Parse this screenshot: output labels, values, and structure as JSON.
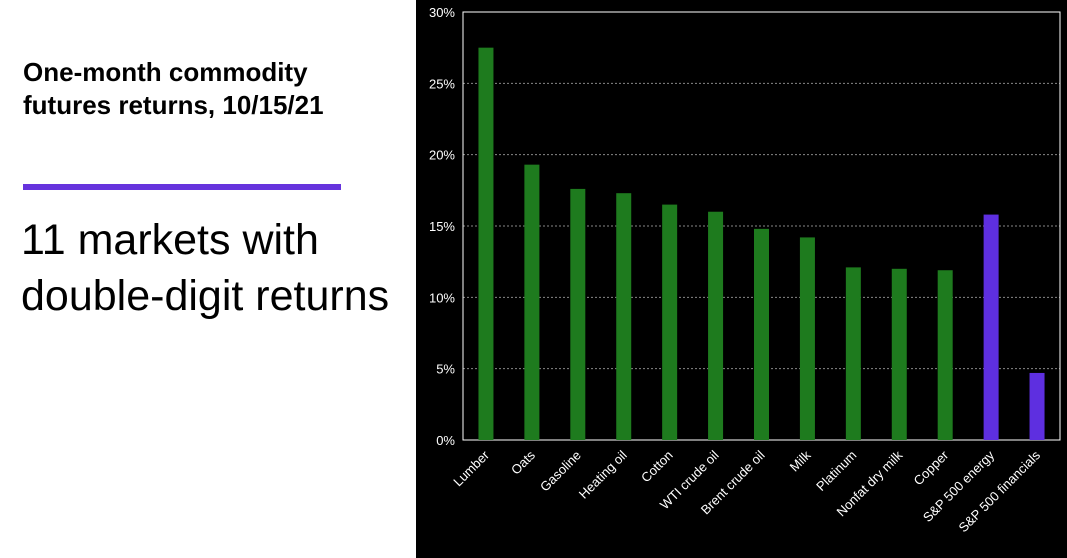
{
  "headline": "One-month commodity futures returns, 10/15/21",
  "subhead": "11 markets with double-digit returns",
  "colors": {
    "accent": "#6633dd",
    "commodity_bar": "#1e7b1e",
    "equity_bar": "#5e2fe0",
    "chart_background": "#000000",
    "axis": "#ffffff",
    "grid": "#888888"
  },
  "chart_data": {
    "type": "bar",
    "title": "",
    "xlabel": "",
    "ylabel": "",
    "ylim": [
      0,
      30
    ],
    "y_ticks": [
      0,
      5,
      10,
      15,
      20,
      25,
      30
    ],
    "y_tick_labels": [
      "0%",
      "5%",
      "10%",
      "15%",
      "20%",
      "25%",
      "30%"
    ],
    "grid": "horizontal dashed",
    "legend": "none",
    "categories": [
      "Lumber",
      "Oats",
      "Gasoline",
      "Heating oil",
      "Cotton",
      "WTI crude oil",
      "Brent crude oil",
      "Milk",
      "Platinum",
      "Nonfat dry milk",
      "Copper",
      "S&P 500 energy",
      "S&P 500 financials"
    ],
    "values": [
      27.5,
      19.3,
      17.6,
      17.3,
      16.5,
      16.0,
      14.8,
      14.2,
      12.1,
      12.0,
      11.9,
      15.8,
      4.7
    ],
    "bar_groups": [
      "commodity",
      "commodity",
      "commodity",
      "commodity",
      "commodity",
      "commodity",
      "commodity",
      "commodity",
      "commodity",
      "commodity",
      "commodity",
      "equity",
      "equity"
    ]
  }
}
